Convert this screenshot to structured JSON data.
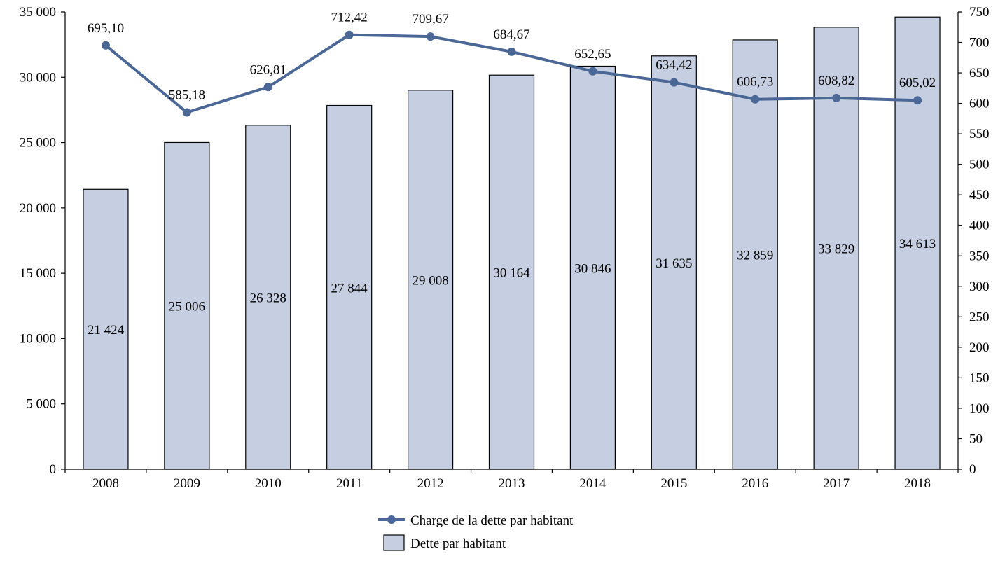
{
  "chart_data": {
    "type": "bar",
    "categories": [
      "2008",
      "2009",
      "2010",
      "2011",
      "2012",
      "2013",
      "2014",
      "2015",
      "2016",
      "2017",
      "2018"
    ],
    "series": [
      {
        "name": "Dette par habitant",
        "type": "bar",
        "axis": "left",
        "values": [
          21424,
          25006,
          26328,
          27844,
          29008,
          30164,
          30846,
          31635,
          32859,
          33829,
          34613
        ],
        "labels": [
          "21 424",
          "25 006",
          "26 328",
          "27 844",
          "29 008",
          "30 164",
          "30 846",
          "31 635",
          "32 859",
          "33 829",
          "34 613"
        ],
        "color": "#c5cfe1"
      },
      {
        "name": "Charge de la dette par habitant",
        "type": "line",
        "axis": "right",
        "values": [
          695.1,
          585.18,
          626.81,
          712.42,
          709.67,
          684.67,
          652.65,
          634.42,
          606.73,
          608.82,
          605.02
        ],
        "labels": [
          "695,10",
          "585,18",
          "626,81",
          "712,42",
          "709,67",
          "684,67",
          "652,65",
          "634,42",
          "606,73",
          "608,82",
          "605,02"
        ],
        "color": "#4a6796"
      }
    ],
    "y_left": {
      "lim": [
        0,
        35000
      ],
      "ticks": [
        0,
        5000,
        10000,
        15000,
        20000,
        25000,
        30000,
        35000
      ],
      "tick_labels": [
        "0",
        "5 000",
        "10 000",
        "15 000",
        "20 000",
        "25 000",
        "30 000",
        "35 000"
      ]
    },
    "y_right": {
      "lim": [
        0,
        750
      ],
      "ticks": [
        0,
        50,
        100,
        150,
        200,
        250,
        300,
        350,
        400,
        450,
        500,
        550,
        600,
        650,
        700,
        750
      ],
      "tick_labels": [
        "0",
        "50",
        "100",
        "150",
        "200",
        "250",
        "300",
        "350",
        "400",
        "450",
        "500",
        "550",
        "600",
        "650",
        "700",
        "750"
      ]
    },
    "title": "",
    "xlabel": "",
    "grid": false,
    "legend_position": "bottom-center"
  }
}
